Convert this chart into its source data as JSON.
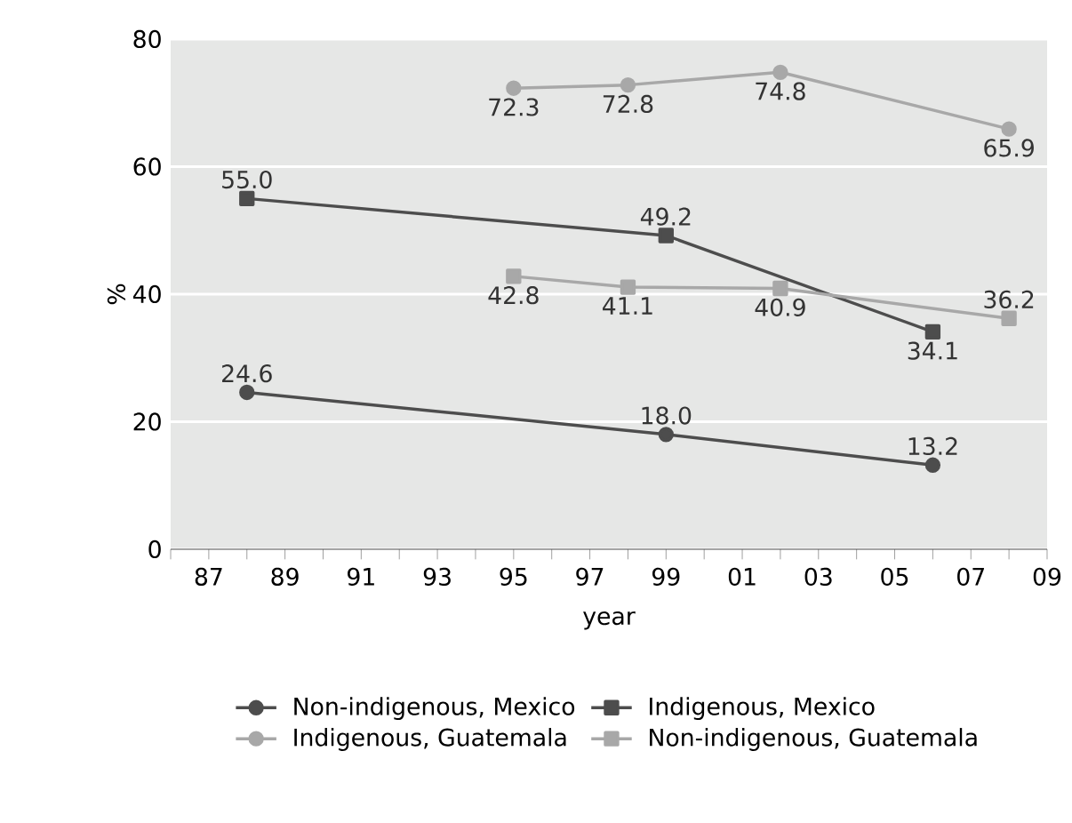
{
  "chart_data": {
    "type": "line",
    "xlabel": "year",
    "ylabel": "%",
    "xlim": [
      1986,
      2009
    ],
    "ylim": [
      0,
      80
    ],
    "yticks": [
      0,
      20,
      40,
      60,
      80
    ],
    "xticks": [
      {
        "value": 1986,
        "label": null
      },
      {
        "value": 1987,
        "label": "87"
      },
      {
        "value": 1988,
        "label": null
      },
      {
        "value": 1989,
        "label": "89"
      },
      {
        "value": 1990,
        "label": null
      },
      {
        "value": 1991,
        "label": "91"
      },
      {
        "value": 1992,
        "label": null
      },
      {
        "value": 1993,
        "label": "93"
      },
      {
        "value": 1994,
        "label": null
      },
      {
        "value": 1995,
        "label": "95"
      },
      {
        "value": 1996,
        "label": null
      },
      {
        "value": 1997,
        "label": "97"
      },
      {
        "value": 1998,
        "label": null
      },
      {
        "value": 1999,
        "label": "99"
      },
      {
        "value": 2000,
        "label": null
      },
      {
        "value": 2001,
        "label": "01"
      },
      {
        "value": 2002,
        "label": null
      },
      {
        "value": 2003,
        "label": "03"
      },
      {
        "value": 2004,
        "label": null
      },
      {
        "value": 2005,
        "label": "05"
      },
      {
        "value": 2006,
        "label": null
      },
      {
        "value": 2007,
        "label": "07"
      },
      {
        "value": 2008,
        "label": null
      },
      {
        "value": 2009,
        "label": "09"
      }
    ],
    "grid": "y",
    "legend": "bottom",
    "series": [
      {
        "name": "Non-indigenous, Mexico",
        "color": "#4d4d4d",
        "marker": "circle",
        "x": [
          1988,
          1999,
          2006
        ],
        "values": [
          24.6,
          18.0,
          13.2
        ],
        "value_labels": [
          "24.6",
          "18.0",
          "13.2"
        ]
      },
      {
        "name": "Indigenous, Mexico",
        "color": "#4d4d4d",
        "marker": "square",
        "x": [
          1988,
          1999,
          2006
        ],
        "values": [
          55.0,
          49.2,
          34.1
        ],
        "value_labels": [
          "55.0",
          "49.2",
          "34.1"
        ]
      },
      {
        "name": "Indigenous, Guatemala",
        "color": "#a8a8a8",
        "marker": "circle",
        "x": [
          1995,
          1998,
          2002,
          2008
        ],
        "values": [
          72.3,
          72.8,
          74.8,
          65.9
        ],
        "value_labels": [
          "72.3",
          "72.8",
          "74.8",
          "65.9"
        ]
      },
      {
        "name": "Non-indigenous, Guatemala",
        "color": "#a8a8a8",
        "marker": "square",
        "x": [
          1995,
          1998,
          2002,
          2008
        ],
        "values": [
          42.8,
          41.1,
          40.9,
          36.2
        ],
        "value_labels": [
          "42.8",
          "41.1",
          "40.9",
          "36.2"
        ]
      }
    ]
  }
}
